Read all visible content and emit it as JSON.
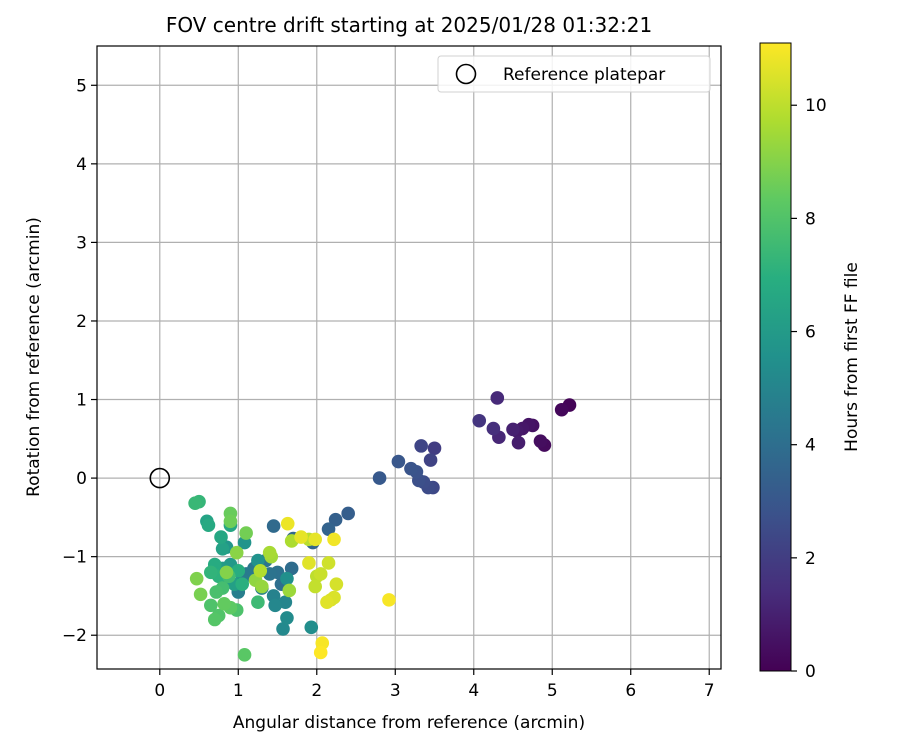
{
  "chart_data": {
    "type": "scatter",
    "title": "FOV centre drift starting at 2025/01/28 01:32:21",
    "xlabel": "Angular distance from reference (arcmin)",
    "ylabel": "Rotation from reference (arcmin)",
    "xlim": [
      -0.8,
      7.15
    ],
    "ylim": [
      -2.43,
      5.5
    ],
    "xticks": [
      0,
      1,
      2,
      3,
      4,
      5,
      6,
      7
    ],
    "yticks": [
      -2,
      -1,
      0,
      1,
      2,
      3,
      4,
      5
    ],
    "grid": true,
    "legend": {
      "placement": "top-right",
      "entries": [
        "Reference platepar"
      ]
    },
    "reference_point": {
      "x": 0,
      "y": 0
    },
    "colorbar": {
      "label": "Hours from first FF file",
      "range": [
        0,
        11.1
      ],
      "ticks": [
        0,
        2,
        4,
        6,
        8,
        10
      ],
      "colormap": "viridis"
    },
    "points": [
      [
        5.22,
        0.93,
        0.1
      ],
      [
        5.12,
        0.87,
        0.2
      ],
      [
        4.9,
        0.42,
        0.3
      ],
      [
        4.85,
        0.47,
        0.4
      ],
      [
        4.75,
        0.67,
        0.5
      ],
      [
        4.7,
        0.68,
        0.6
      ],
      [
        4.62,
        0.63,
        0.7
      ],
      [
        4.55,
        0.6,
        0.8
      ],
      [
        4.57,
        0.45,
        0.9
      ],
      [
        4.5,
        0.62,
        1.0
      ],
      [
        4.32,
        0.52,
        1.2
      ],
      [
        4.3,
        1.02,
        1.3
      ],
      [
        4.25,
        0.63,
        1.5
      ],
      [
        4.07,
        0.73,
        1.7
      ],
      [
        3.5,
        0.38,
        2.0
      ],
      [
        3.45,
        0.23,
        2.2
      ],
      [
        3.33,
        0.41,
        2.3
      ],
      [
        3.48,
        -0.12,
        2.4
      ],
      [
        3.42,
        -0.12,
        2.5
      ],
      [
        3.36,
        -0.05,
        2.6
      ],
      [
        3.3,
        -0.03,
        2.7
      ],
      [
        3.27,
        0.08,
        2.8
      ],
      [
        3.2,
        0.12,
        2.9
      ],
      [
        3.04,
        0.21,
        3.0
      ],
      [
        2.8,
        0.0,
        3.1
      ],
      [
        2.4,
        -0.45,
        3.3
      ],
      [
        2.24,
        -0.53,
        3.4
      ],
      [
        2.15,
        -0.65,
        3.5
      ],
      [
        1.95,
        -0.82,
        3.6
      ],
      [
        1.7,
        -0.77,
        3.7
      ],
      [
        1.45,
        -0.61,
        3.8
      ],
      [
        1.68,
        -1.15,
        3.9
      ],
      [
        1.55,
        -1.35,
        4.0
      ],
      [
        1.5,
        -1.2,
        4.1
      ],
      [
        1.4,
        -1.22,
        4.2
      ],
      [
        1.35,
        -1.05,
        4.3
      ],
      [
        1.2,
        -1.15,
        4.4
      ],
      [
        1.1,
        -1.22,
        4.5
      ],
      [
        1.05,
        -1.3,
        4.6
      ],
      [
        1.0,
        -1.45,
        4.7
      ],
      [
        1.3,
        -1.4,
        4.8
      ],
      [
        1.45,
        -1.5,
        4.9
      ],
      [
        1.6,
        -1.58,
        5.0
      ],
      [
        1.47,
        -1.62,
        5.1
      ],
      [
        1.57,
        -1.92,
        5.2
      ],
      [
        1.62,
        -1.78,
        5.3
      ],
      [
        1.93,
        -1.9,
        5.4
      ],
      [
        1.62,
        -1.28,
        5.5
      ],
      [
        1.25,
        -1.05,
        5.6
      ],
      [
        1.08,
        -0.82,
        5.7
      ],
      [
        0.85,
        -0.88,
        5.8
      ],
      [
        0.9,
        -1.1,
        5.9
      ],
      [
        0.8,
        -1.15,
        6.0
      ],
      [
        0.85,
        -1.3,
        6.1
      ],
      [
        0.95,
        -1.35,
        6.2
      ],
      [
        0.8,
        -0.9,
        6.3
      ],
      [
        0.6,
        -0.55,
        6.4
      ],
      [
        0.9,
        -0.6,
        6.5
      ],
      [
        0.78,
        -0.75,
        6.6
      ],
      [
        0.62,
        -0.6,
        6.7
      ],
      [
        0.7,
        -1.1,
        6.8
      ],
      [
        1.0,
        -1.18,
        6.9
      ],
      [
        1.05,
        -1.35,
        7.0
      ],
      [
        0.75,
        -1.25,
        7.1
      ],
      [
        0.65,
        -1.2,
        7.2
      ],
      [
        0.5,
        -0.3,
        7.3
      ],
      [
        0.45,
        -0.32,
        7.4
      ],
      [
        1.25,
        -1.58,
        7.5
      ],
      [
        0.88,
        -1.25,
        7.6
      ],
      [
        0.8,
        -1.4,
        7.7
      ],
      [
        0.72,
        -1.45,
        7.8
      ],
      [
        0.98,
        -1.68,
        7.9
      ],
      [
        0.65,
        -1.62,
        7.95
      ],
      [
        0.75,
        -1.75,
        8.0
      ],
      [
        0.7,
        -1.8,
        8.1
      ],
      [
        1.08,
        -2.25,
        8.2
      ],
      [
        0.9,
        -1.65,
        8.3
      ],
      [
        0.82,
        -1.6,
        8.4
      ],
      [
        0.9,
        -0.45,
        8.5
      ],
      [
        0.9,
        -0.55,
        8.6
      ],
      [
        1.1,
        -0.7,
        8.7
      ],
      [
        0.52,
        -1.48,
        8.8
      ],
      [
        0.47,
        -1.28,
        8.9
      ],
      [
        0.85,
        -1.2,
        9.0
      ],
      [
        0.98,
        -0.95,
        9.1
      ],
      [
        1.22,
        -1.3,
        9.2
      ],
      [
        1.3,
        -1.38,
        9.3
      ],
      [
        1.65,
        -1.43,
        9.4
      ],
      [
        1.42,
        -1.0,
        9.5
      ],
      [
        1.4,
        -0.95,
        9.6
      ],
      [
        1.68,
        -0.8,
        9.7
      ],
      [
        1.28,
        -1.18,
        9.8
      ],
      [
        1.9,
        -0.78,
        9.9
      ],
      [
        2.0,
        -1.25,
        10.0
      ],
      [
        1.98,
        -1.38,
        10.1
      ],
      [
        2.05,
        -1.22,
        10.2
      ],
      [
        2.15,
        -1.08,
        10.3
      ],
      [
        2.25,
        -1.35,
        10.4
      ],
      [
        2.18,
        -1.55,
        10.5
      ],
      [
        2.22,
        -1.52,
        10.5
      ],
      [
        2.13,
        -1.58,
        10.6
      ],
      [
        1.9,
        -1.08,
        10.6
      ],
      [
        1.8,
        -0.75,
        10.7
      ],
      [
        1.98,
        -0.78,
        10.7
      ],
      [
        1.63,
        -0.58,
        10.8
      ],
      [
        2.22,
        -0.78,
        10.9
      ],
      [
        2.92,
        -1.55,
        11.0
      ],
      [
        2.07,
        -2.1,
        11.0
      ],
      [
        2.05,
        -2.22,
        11.1
      ]
    ]
  }
}
